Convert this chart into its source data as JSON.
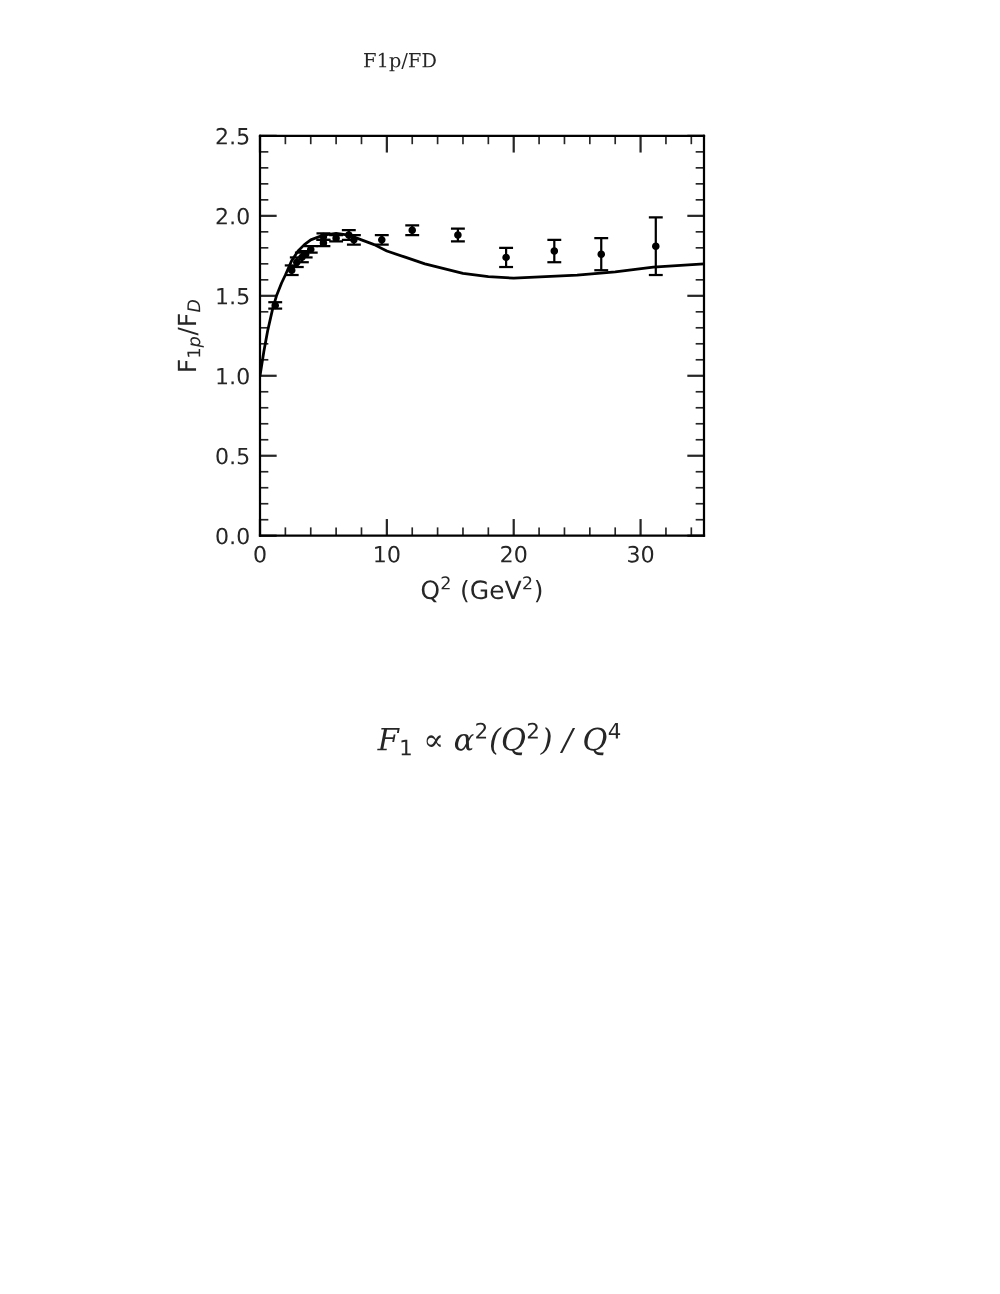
{
  "chart_data": {
    "type": "scatter",
    "title": "F1p/FD",
    "xlabel": "Q$^{2}$ (GeV$^{2}$)",
    "ylabel": "F$_{1p}$/F$_{D}$",
    "xlim": [
      0,
      35
    ],
    "xticks": [
      0,
      10,
      20,
      30
    ],
    "ylim": [
      0,
      2.5
    ],
    "yticks": [
      {
        "value": 0,
        "label": "0.0"
      },
      {
        "value": 0.5,
        "label": "0.5"
      },
      {
        "value": 1,
        "label": "1.0"
      },
      {
        "value": 1.5,
        "label": "1.5"
      },
      {
        "value": 2,
        "label": "2.0"
      },
      {
        "value": 2.5,
        "label": "2.5"
      }
    ],
    "grid": false,
    "series": [
      {
        "color": "#000000",
        "marker": "circle",
        "x": [
          1.2,
          2.5,
          2.9,
          3.3,
          3.6,
          4.0,
          5.0,
          5.0,
          6.0,
          7.0,
          7.4,
          9.6,
          12.0,
          15.6,
          19.4,
          23.2,
          26.9,
          31.2
        ],
        "values": [
          1.44,
          1.66,
          1.71,
          1.74,
          1.76,
          1.79,
          1.87,
          1.83,
          1.86,
          1.88,
          1.85,
          1.85,
          1.91,
          1.88,
          1.74,
          1.78,
          1.76,
          1.81
        ],
        "errors": [
          0.02,
          0.03,
          0.03,
          0.03,
          0.02,
          0.02,
          0.02,
          0.02,
          0.02,
          0.03,
          0.03,
          0.03,
          0.03,
          0.04,
          0.06,
          0.07,
          0.1,
          0.18
        ]
      },
      {
        "type": "line",
        "color": "#000000",
        "marker": "none",
        "line_style": "solid",
        "x": [
          0,
          0.3,
          0.6,
          1.0,
          1.3,
          1.7,
          2.0,
          2.5,
          3.0,
          3.5,
          4.0,
          5.0,
          6.0,
          7.0,
          8.0,
          9.0,
          10,
          11.5,
          13,
          14.5,
          16,
          18,
          20,
          22.5,
          25,
          28,
          31,
          35
        ],
        "values": [
          1.0,
          1.15,
          1.28,
          1.42,
          1.5,
          1.58,
          1.63,
          1.72,
          1.78,
          1.82,
          1.85,
          1.88,
          1.89,
          1.88,
          1.85,
          1.82,
          1.78,
          1.74,
          1.7,
          1.67,
          1.64,
          1.62,
          1.61,
          1.62,
          1.63,
          1.65,
          1.68,
          1.7
        ]
      }
    ],
    "annotations": [
      "F$_{1}$ ∝ α$^{2}$(Q$^{2}$) / Q$^{4}$"
    ]
  }
}
